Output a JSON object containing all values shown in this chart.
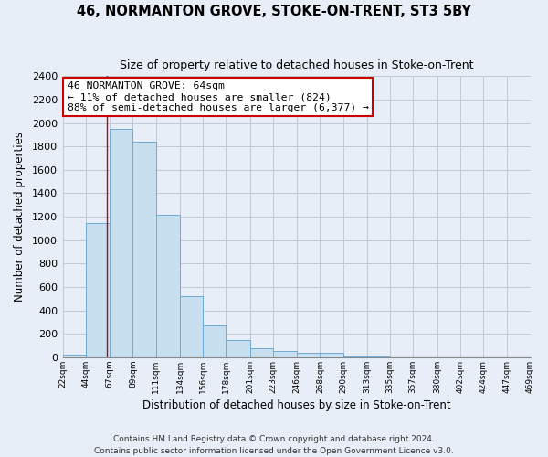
{
  "title": "46, NORMANTON GROVE, STOKE-ON-TRENT, ST3 5BY",
  "subtitle": "Size of property relative to detached houses in Stoke-on-Trent",
  "xlabel": "Distribution of detached houses by size in Stoke-on-Trent",
  "ylabel": "Number of detached properties",
  "bar_edges": [
    22,
    44,
    67,
    89,
    111,
    134,
    156,
    178,
    201,
    223,
    246,
    268,
    290,
    313,
    335,
    357,
    380,
    402,
    424,
    447,
    469
  ],
  "bar_heights": [
    25,
    1150,
    1950,
    1840,
    1220,
    520,
    270,
    150,
    80,
    55,
    40,
    35,
    10,
    5,
    3,
    2,
    1,
    1,
    0,
    0
  ],
  "bar_color": "#c8dff0",
  "bar_edge_color": "#6faad4",
  "vline_x": 64,
  "vline_color": "#cc0000",
  "annotation_line1": "46 NORMANTON GROVE: 64sqm",
  "annotation_line2": "← 11% of detached houses are smaller (824)",
  "annotation_line3": "88% of semi-detached houses are larger (6,377) →",
  "annotation_box_color": "#ffffff",
  "annotation_box_edge": "#cc0000",
  "ylim": [
    0,
    2400
  ],
  "yticks": [
    0,
    200,
    400,
    600,
    800,
    1000,
    1200,
    1400,
    1600,
    1800,
    2000,
    2200,
    2400
  ],
  "tick_labels": [
    "22sqm",
    "44sqm",
    "67sqm",
    "89sqm",
    "111sqm",
    "134sqm",
    "156sqm",
    "178sqm",
    "201sqm",
    "223sqm",
    "246sqm",
    "268sqm",
    "290sqm",
    "313sqm",
    "335sqm",
    "357sqm",
    "380sqm",
    "402sqm",
    "424sqm",
    "447sqm",
    "469sqm"
  ],
  "footer_line1": "Contains HM Land Registry data © Crown copyright and database right 2024.",
  "footer_line2": "Contains public sector information licensed under the Open Government Licence v3.0.",
  "background_color": "#e8eef8",
  "plot_bg_color": "#e8eef8",
  "grid_color": "#c0c8d8"
}
